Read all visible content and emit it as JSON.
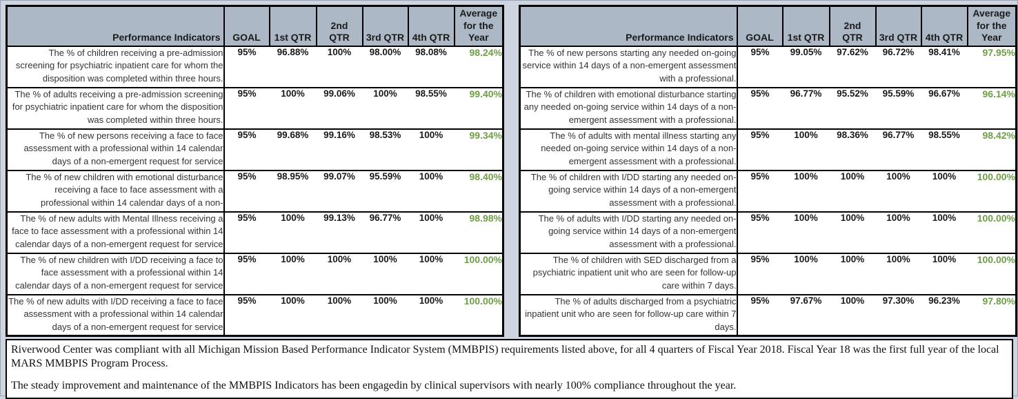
{
  "column_headers": [
    "Performance Indicators",
    "GOAL",
    "1st QTR",
    "2nd QTR",
    "3rd QTR",
    "4th QTR",
    "Average for the Year"
  ],
  "tables": [
    {
      "id": "left",
      "rows": [
        {
          "indicator": "The % of children receiving a pre-admission screening for psychiatric inpatient care for whom the disposition was completed within three hours.",
          "goal": "95%",
          "q1": "96.88%",
          "q2": "100%",
          "q3": "98.00%",
          "q4": "98.08%",
          "avg": "98.24%"
        },
        {
          "indicator": "The % of adults receiving a pre-admission screening for psychiatric inpatient care for whom the disposition was completed within three hours.",
          "goal": "95%",
          "q1": "100%",
          "q2": "99.06%",
          "q3": "100%",
          "q4": "98.55%",
          "avg": "99.40%"
        },
        {
          "indicator": "The % of new persons receiving a face to face assessment with a professional within 14 calendar days of a non-emergent request for service",
          "goal": "95%",
          "q1": "99.68%",
          "q2": "99.16%",
          "q3": "98.53%",
          "q4": "100%",
          "avg": "99.34%"
        },
        {
          "indicator": "The % of new children with emotional disturbance receiving a face to face assessment with a professional within 14 calendar days of a non-emergent request for service",
          "goal": "95%",
          "q1": "98.95%",
          "q2": "99.07%",
          "q3": "95.59%",
          "q4": "100%",
          "avg": "98.40%"
        },
        {
          "indicator": "The % of new adults with Mental Illness receiving a face to face assessment with a professional within 14 calendar days of a non-emergent request for service",
          "goal": "95%",
          "q1": "100%",
          "q2": "99.13%",
          "q3": "96.77%",
          "q4": "100%",
          "avg": "98.98%"
        },
        {
          "indicator": "The % of new children with I/DD receiving a face to face assessment with a professional within 14 calendar days of a non-emergent request for service",
          "goal": "95%",
          "q1": "100%",
          "q2": "100%",
          "q3": "100%",
          "q4": "100%",
          "avg": "100.00%"
        },
        {
          "indicator": "The % of new adults with I/DD receiving a face to face assessment with a professional within 14 calendar days of a non-emergent request for service",
          "goal": "95%",
          "q1": "100%",
          "q2": "100%",
          "q3": "100%",
          "q4": "100%",
          "avg": "100.00%"
        }
      ]
    },
    {
      "id": "right",
      "rows": [
        {
          "indicator": "The % of new persons starting any needed on-going service within 14 days of a non-emergent assessment with a professional.",
          "goal": "95%",
          "q1": "99.05%",
          "q2": "97.62%",
          "q3": "96.72%",
          "q4": "98.41%",
          "avg": "97.95%"
        },
        {
          "indicator": "The % of children with emotional disturbance starting any needed on-going service within 14 days of a non-emergent assessment with a professional.",
          "goal": "95%",
          "q1": "96.77%",
          "q2": "95.52%",
          "q3": "95.59%",
          "q4": "96.67%",
          "avg": "96.14%"
        },
        {
          "indicator": "The % of adults with mental illness starting any needed on-going service within 14 days of a non-emergent assessment with a professional.",
          "goal": "95%",
          "q1": "100%",
          "q2": "98.36%",
          "q3": "96.77%",
          "q4": "98.55%",
          "avg": "98.42%"
        },
        {
          "indicator": "The % of children with I/DD starting any needed on-going service within 14 days of a non-emergent assessment with a professional.",
          "goal": "95%",
          "q1": "100%",
          "q2": "100%",
          "q3": "100%",
          "q4": "100%",
          "avg": "100.00%"
        },
        {
          "indicator": "The % of adults with I/DD starting any needed on-going service within 14 days of a non-emergent assessment with a professional.",
          "goal": "95%",
          "q1": "100%",
          "q2": "100%",
          "q3": "100%",
          "q4": "100%",
          "avg": "100.00%"
        },
        {
          "indicator": "The % of children with SED discharged from a psychiatric inpatient unit who are seen for follow-up care within 7 days.",
          "goal": "95%",
          "q1": "100%",
          "q2": "100%",
          "q3": "100%",
          "q4": "100%",
          "avg": "100.00%"
        },
        {
          "indicator": "The % of adults discharged from a psychiatric inpatient unit who are seen for follow-up care within 7 days.",
          "goal": "95%",
          "q1": "97.67%",
          "q2": "100%",
          "q3": "97.30%",
          "q4": "96.23%",
          "avg": "97.80%"
        }
      ]
    }
  ],
  "footer": {
    "paragraph1": "Riverwood Center was compliant with all Michigan Mission Based Performance Indicator System (MMBPIS) requirements listed above, for all 4 quarters of Fiscal Year 2018.  Fiscal Year 18 was the first full year of the local MARS MMBPIS Program Process.",
    "paragraph2": "The steady improvement and maintenance of the MMBPIS Indicators has been engagedin  by clinical supervisors with nearly 100% compliance throughout the year."
  },
  "colors": {
    "header_bg": "#ADB8C6",
    "average_green": "#6F9D49",
    "page_bg": "#CED5E0",
    "border": "#000000"
  }
}
